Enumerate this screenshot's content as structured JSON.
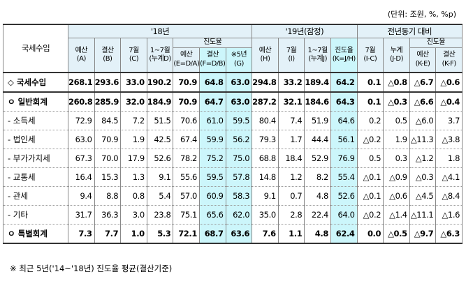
{
  "unit": "(단위: 조원, %, %p)",
  "table": {
    "header": {
      "corner": "국세수입",
      "groups": [
        "'18년",
        "'19년(잠정)",
        "전년동기 대비"
      ],
      "y18": [
        "예산\n(A)",
        "결산\n(B)",
        "7월\n(C)",
        "1~7월\n(누계D)",
        "진도율"
      ],
      "y18_rate": [
        "예산\n(E=D/A)",
        "결산\n(F=D/B)",
        "※5년\n(G)"
      ],
      "y19": [
        "예산\n(H)",
        "7월\n(I)",
        "1~7월\n(누계J)",
        "진도율\n(K=J/H)"
      ],
      "diff": [
        "7월\n(I-C)",
        "누계\n(J-D)",
        "진도율"
      ],
      "diff_rate": [
        "예산\n(K-E)",
        "결산\n(K-F)"
      ]
    },
    "rows": [
      {
        "label": "◇ 국세수입",
        "cells": [
          "268.1",
          "293.6",
          "33.0",
          "190.2",
          "70.9",
          "64.8",
          "63.0",
          "294.8",
          "33.2",
          "189.4",
          "64.2",
          "0.1",
          "△0.8",
          "△6.7",
          "△0.6"
        ]
      },
      {
        "label": "ㅇ 일반회계",
        "cells": [
          "260.8",
          "285.9",
          "32.0",
          "184.9",
          "70.9",
          "64.7",
          "63.0",
          "287.2",
          "32.1",
          "184.6",
          "64.3",
          "0.1",
          "△0.3",
          "△6.6",
          "△0.4"
        ]
      },
      {
        "label": "- 소득세",
        "cells": [
          "72.9",
          "84.5",
          "7.2",
          "51.5",
          "70.6",
          "61.0",
          "59.5",
          "80.4",
          "7.4",
          "51.9",
          "64.6",
          "0.2",
          "0.5",
          "△6.0",
          "3.7"
        ]
      },
      {
        "label": "- 법인세",
        "cells": [
          "63.0",
          "70.9",
          "1.9",
          "42.5",
          "67.4",
          "59.9",
          "56.2",
          "79.3",
          "1.7",
          "44.4",
          "56.1",
          "△0.2",
          "1.9",
          "△11.3",
          "△3.8"
        ]
      },
      {
        "label": "- 부가가치세",
        "cells": [
          "67.3",
          "70.0",
          "17.9",
          "52.6",
          "78.2",
          "75.2",
          "75.0",
          "68.8",
          "18.4",
          "52.9",
          "76.9",
          "0.5",
          "0.3",
          "△1.2",
          "1.8"
        ]
      },
      {
        "label": "- 교통세",
        "cells": [
          "16.4",
          "15.3",
          "1.3",
          "9.1",
          "55.6",
          "59.5",
          "57.8",
          "14.8",
          "1.2",
          "8.2",
          "55.4",
          "△0.1",
          "△0.9",
          "△0.3",
          "△4.1"
        ]
      },
      {
        "label": "- 관세",
        "cells": [
          "9.4",
          "8.8",
          "0.8",
          "5.4",
          "57.0",
          "60.9",
          "58.3",
          "9.1",
          "0.7",
          "4.8",
          "52.6",
          "△0.1",
          "△0.6",
          "△4.5",
          "△8.4"
        ]
      },
      {
        "label": "- 기타",
        "cells": [
          "31.7",
          "36.3",
          "3.0",
          "23.8",
          "75.1",
          "65.6",
          "62.0",
          "35.0",
          "2.8",
          "22.4",
          "64.0",
          "△0.2",
          "△1.4",
          "△11.1",
          "△1.6"
        ]
      },
      {
        "label": "ㅇ 특별회계",
        "cells": [
          "7.3",
          "7.7",
          "1.0",
          "5.3",
          "72.1",
          "68.7",
          "63.6",
          "7.6",
          "1.1",
          "4.8",
          "62.4",
          "0.0",
          "△0.5",
          "△9.7",
          "△6.3"
        ]
      }
    ]
  },
  "footnote": "※ 최근 5년('14~'18년) 진도율 평균(결산기준)"
}
